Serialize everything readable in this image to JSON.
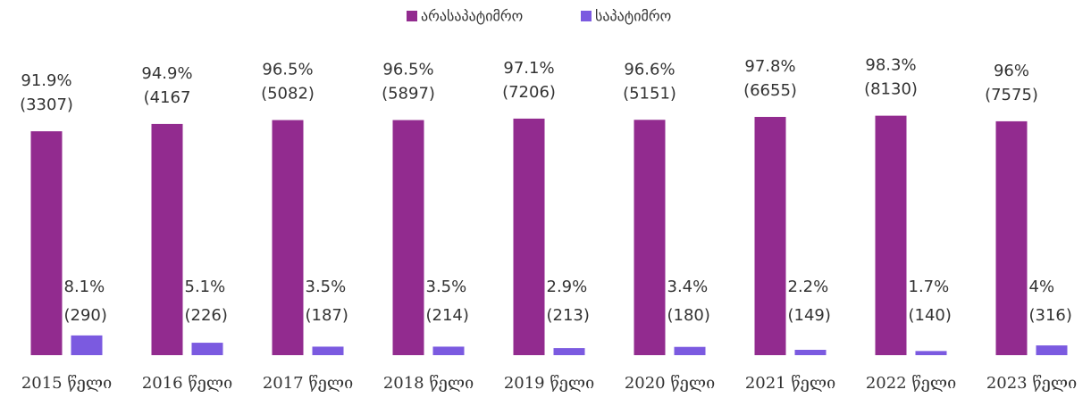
{
  "chart_data": {
    "type": "bar",
    "categories": [
      "2015 წელი",
      "2016 წელი",
      "2017 წელი",
      "2018 წელი",
      "2019 წელი",
      "2020 წელი",
      "2021 წელი",
      "2022 წელი",
      "2023 წელი"
    ],
    "ylim": [
      0,
      100
    ],
    "legend": "top",
    "series": [
      {
        "name": "არასაპატიმრო",
        "color": "#922b8f",
        "values": [
          91.9,
          94.9,
          96.5,
          96.5,
          97.1,
          96.6,
          97.8,
          98.3,
          96
        ],
        "value_labels": [
          "91.9%",
          "94.9%",
          "96.5%",
          "96.5%",
          "97.1%",
          "96.6%",
          "97.8%",
          "98.3%",
          "96%"
        ],
        "counts": [
          3307,
          4167,
          5082,
          5897,
          7206,
          5151,
          6655,
          8130,
          7575
        ],
        "count_labels": [
          "(3307)",
          "(4167",
          "(5082)",
          "(5897)",
          "(7206)",
          "(5151)",
          "(6655)",
          "(8130)",
          "(7575)"
        ]
      },
      {
        "name": "საპატიმრო",
        "color": "#7b5ae0",
        "values": [
          8.1,
          5.1,
          3.5,
          3.5,
          2.9,
          3.4,
          2.2,
          1.7,
          4
        ],
        "value_labels": [
          "8.1%",
          "5.1%",
          "3.5%",
          "3.5%",
          "2.9%",
          "3.4%",
          "2.2%",
          "1.7%",
          "4%"
        ],
        "counts": [
          290,
          226,
          187,
          214,
          213,
          180,
          149,
          140,
          316
        ],
        "count_labels": [
          "(290)",
          "(226)",
          "(187)",
          "(214)",
          "(213)",
          "(180)",
          "(149)",
          "(140)",
          "(316)"
        ]
      }
    ]
  }
}
